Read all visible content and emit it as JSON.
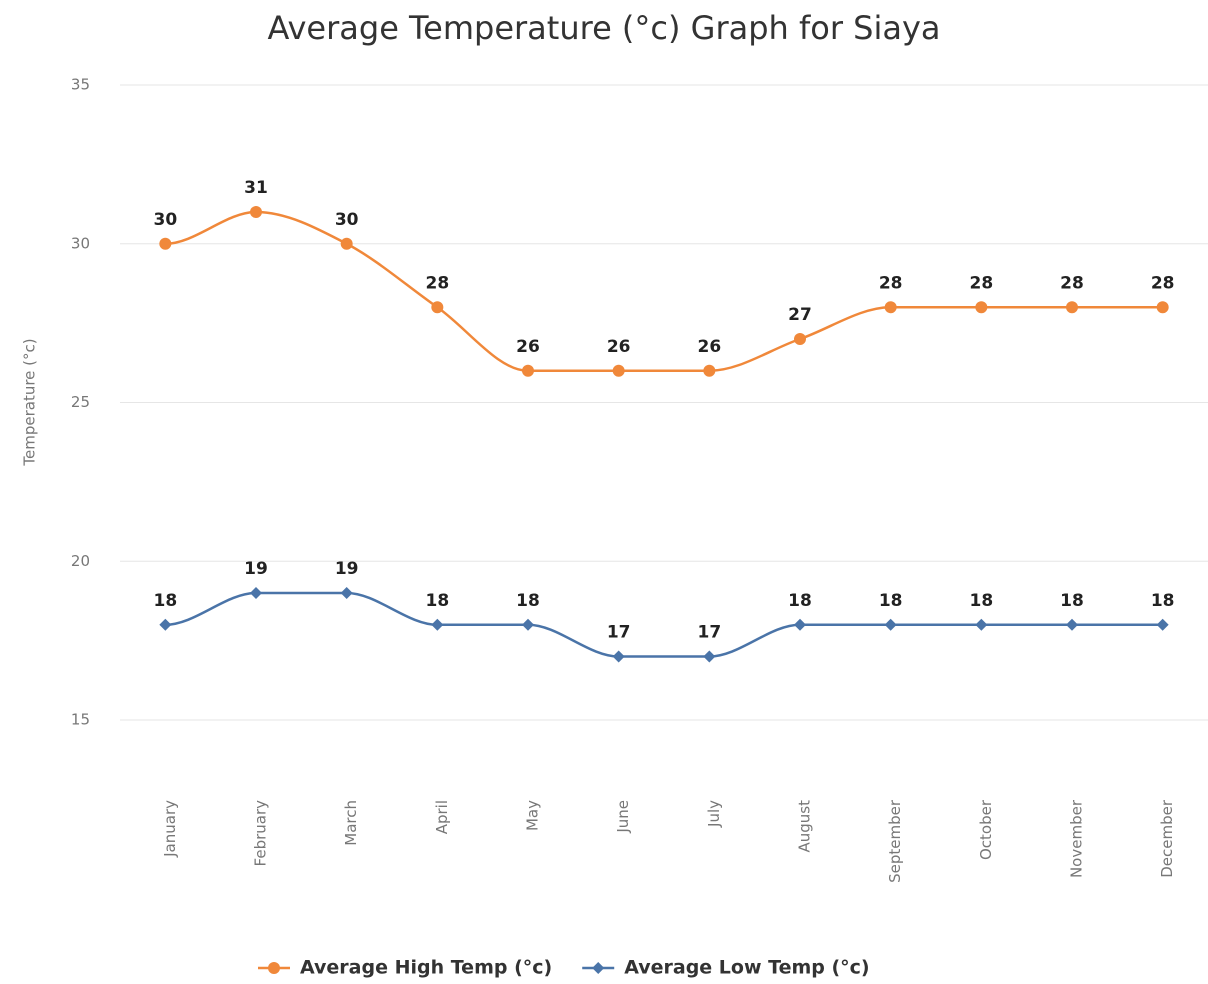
{
  "chart_data": {
    "type": "line",
    "title": "Average Temperature (°c) Graph for Siaya",
    "y_label": "Temperature (°c)",
    "categories": [
      "January",
      "February",
      "March",
      "April",
      "May",
      "June",
      "July",
      "August",
      "September",
      "October",
      "November",
      "December"
    ],
    "series": [
      {
        "name": "Average High Temp (°c)",
        "color": "#f0883a",
        "marker": "circle",
        "values": [
          30,
          31,
          30,
          28,
          26,
          26,
          26,
          27,
          28,
          28,
          28,
          28
        ]
      },
      {
        "name": "Average Low Temp (°c)",
        "color": "#4a74a8",
        "marker": "diamond",
        "values": [
          18,
          19,
          19,
          18,
          18,
          17,
          17,
          18,
          18,
          18,
          18,
          18
        ]
      }
    ],
    "ylim": [
      15,
      35
    ],
    "yticks": [
      15,
      20,
      25,
      30,
      35
    ],
    "grid": true,
    "legend": "bottom"
  }
}
